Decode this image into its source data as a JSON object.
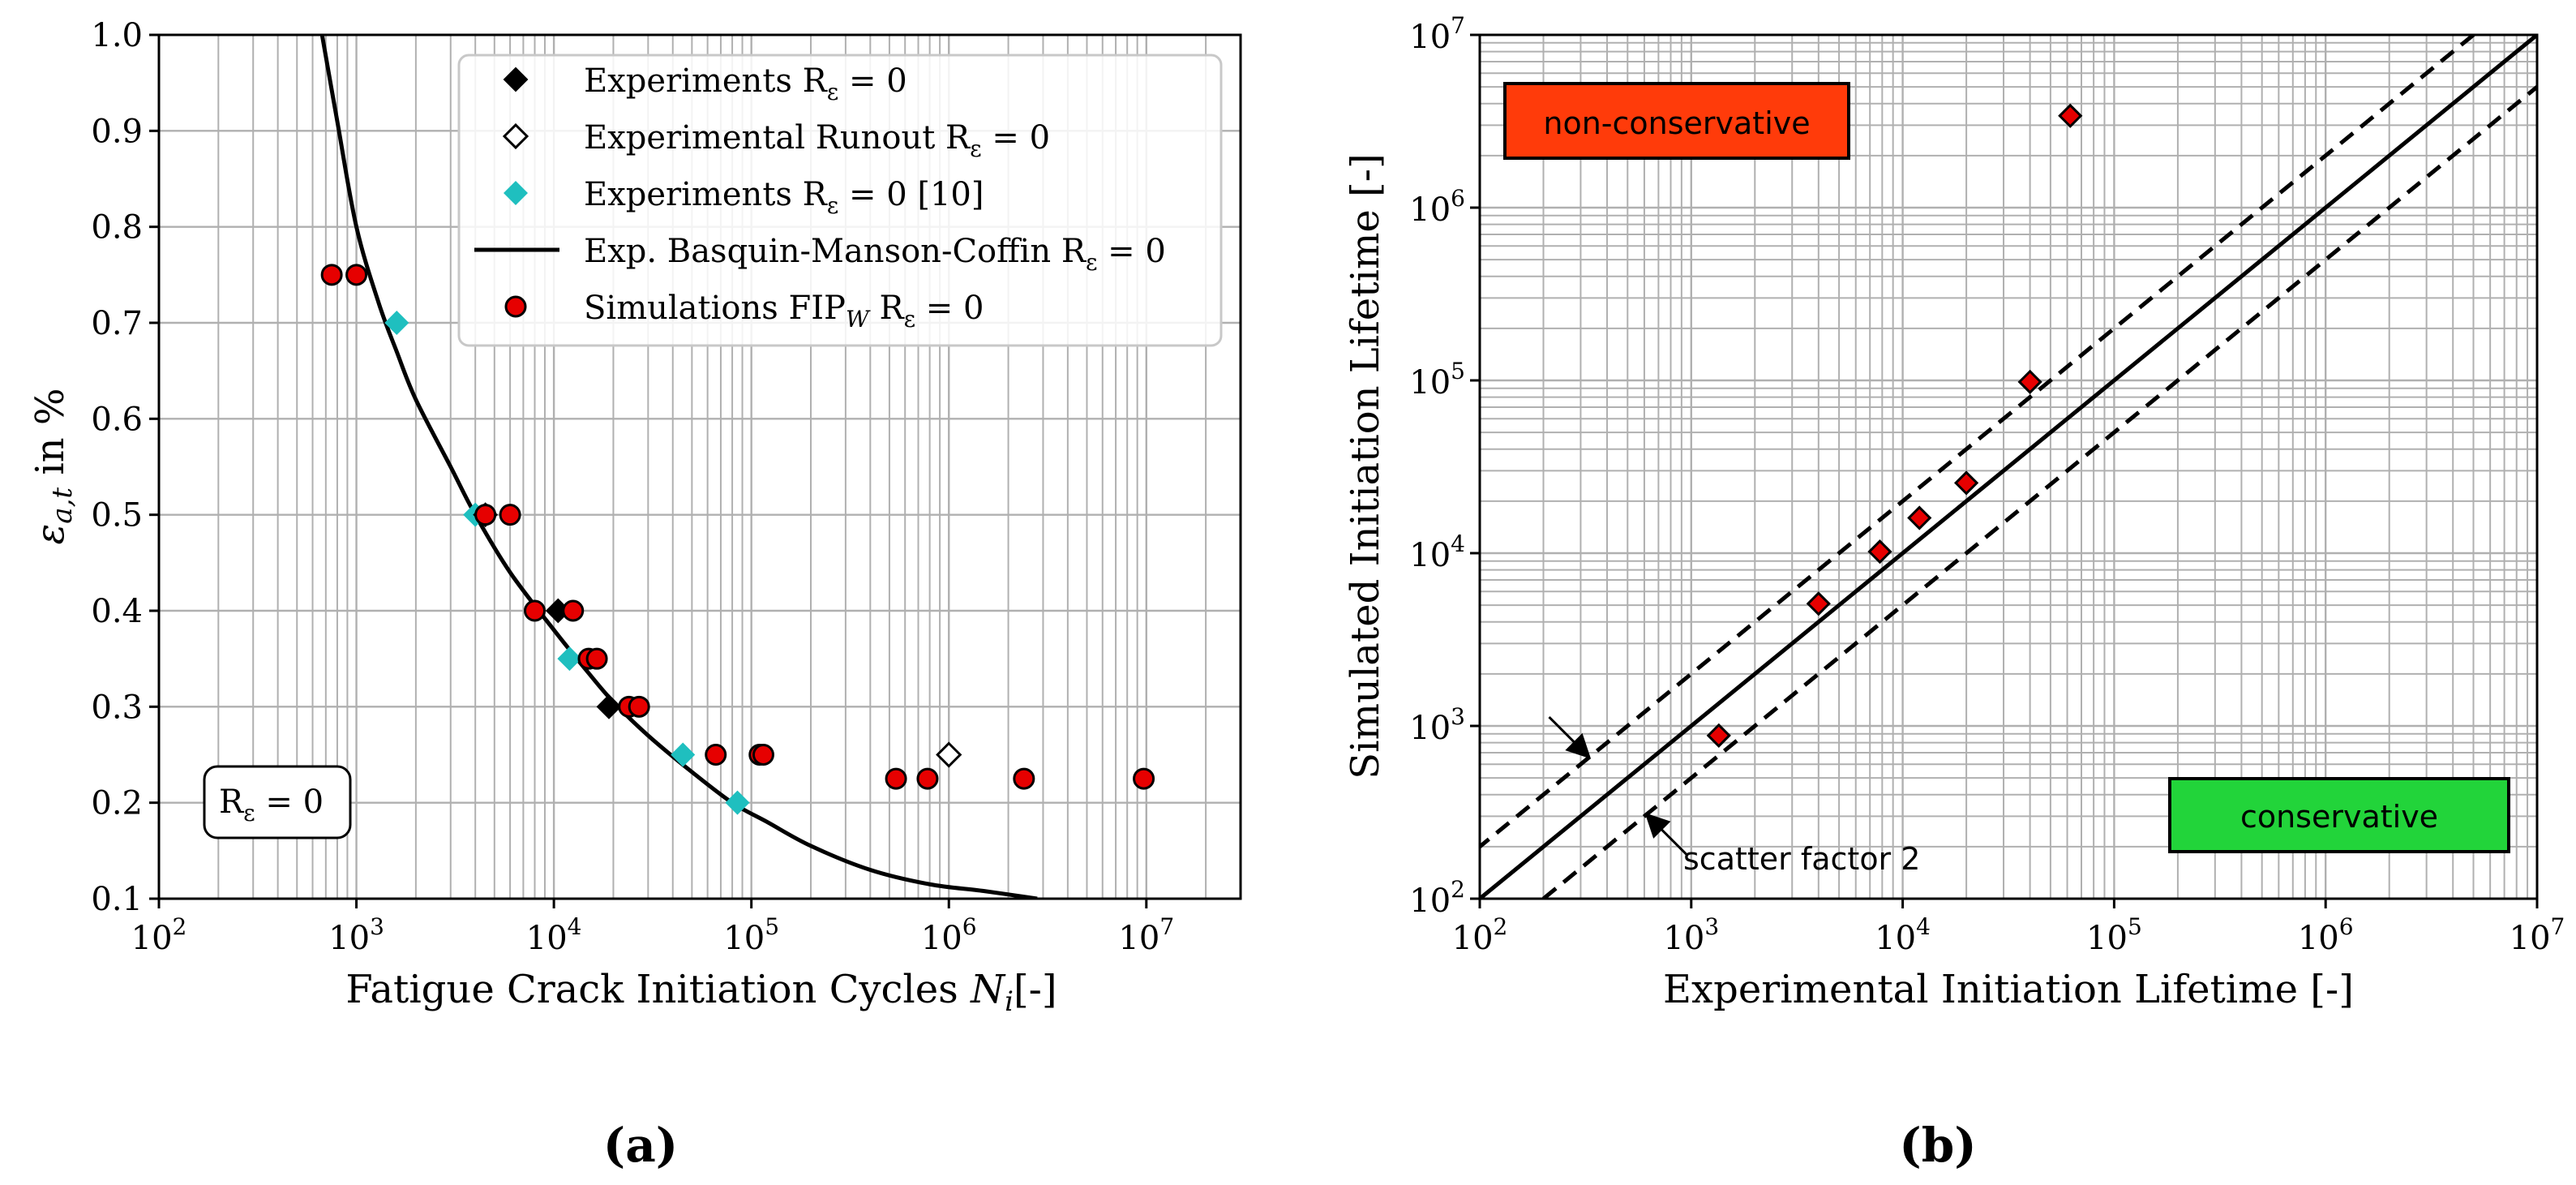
{
  "colors": {
    "axis": "#000000",
    "grid": "#b0b0b0",
    "experiment": "#000000",
    "experiment_lit": "#1fbfbf",
    "simulation": "#e60000",
    "fit_line": "#000000",
    "nonconservative_box": "#ff3b0a",
    "conservative_box": "#22d43a"
  },
  "panel_labels": {
    "a": "(a)",
    "b": "(b)"
  },
  "chart_data": [
    {
      "id": "a",
      "type": "scatter",
      "xscale": "log",
      "yscale": "linear",
      "xlabel_prefix": "Fatigue Crack Initiation Cycles ",
      "xlabel_var": "N",
      "xlabel_sub": "i",
      "xlabel_suffix": "[-]",
      "ylabel_var": "ε",
      "ylabel_sub": "a,t",
      "ylabel_suffix": " in %",
      "xlim": [
        100,
        30000000
      ],
      "ylim": [
        0.1,
        1.0
      ],
      "yticks": [
        0.1,
        0.2,
        0.3,
        0.4,
        0.5,
        0.6,
        0.7,
        0.8,
        0.9,
        1.0
      ],
      "ytick_labels": [
        "0.1",
        "0.2",
        "0.3",
        "0.4",
        "0.5",
        "0.6",
        "0.7",
        "0.8",
        "0.9",
        "1.0"
      ],
      "xtick_exponents": [
        2,
        3,
        4,
        5,
        6,
        7
      ],
      "grid": true,
      "annotation": "R",
      "annotation_sub": "ε",
      "annotation_suffix": " = 0",
      "legend_position": "top-right",
      "legend": [
        {
          "label": "Experiments R",
          "sub": "ε",
          "suffix": " = 0",
          "marker": "diamond-filled"
        },
        {
          "label": "Experimental Runout R",
          "sub": "ε",
          "suffix": " = 0",
          "marker": "diamond-open"
        },
        {
          "label": "Experiments R",
          "sub": "ε",
          "suffix": " = 0 [10]",
          "marker": "diamond-cyan"
        },
        {
          "label": "Exp. Basquin-Manson-Coffin R",
          "sub": "ε",
          "suffix": " = 0",
          "marker": "line"
        },
        {
          "label": "Simulations FIP",
          "label_sub": "W",
          "label2": " R",
          "sub": "ε",
          "suffix": " = 0",
          "marker": "circle-red"
        }
      ],
      "series": [
        {
          "name": "Experiments",
          "marker": "diamond-filled",
          "points": [
            [
              4500,
              0.5
            ],
            [
              10500,
              0.4
            ],
            [
              19000,
              0.3
            ]
          ]
        },
        {
          "name": "Experimental Runout",
          "marker": "diamond-open",
          "points": [
            [
              1000000,
              0.25
            ]
          ]
        },
        {
          "name": "Experiments [10]",
          "marker": "diamond-cyan",
          "points": [
            [
              1600,
              0.7
            ],
            [
              4000,
              0.5
            ],
            [
              12000,
              0.35
            ],
            [
              45000,
              0.25
            ],
            [
              85000,
              0.2
            ]
          ]
        },
        {
          "name": "Simulations FIPW",
          "marker": "circle-red",
          "points": [
            [
              750,
              0.75
            ],
            [
              1000,
              0.75
            ],
            [
              4500,
              0.5
            ],
            [
              6000,
              0.5
            ],
            [
              8000,
              0.4
            ],
            [
              12500,
              0.4
            ],
            [
              15000,
              0.35
            ],
            [
              16500,
              0.35
            ],
            [
              24000,
              0.3
            ],
            [
              27000,
              0.3
            ],
            [
              66000,
              0.25
            ],
            [
              110000,
              0.25
            ],
            [
              115000,
              0.25
            ],
            [
              540000,
              0.225
            ],
            [
              780000,
              0.225
            ],
            [
              2400000,
              0.225
            ],
            [
              9700000,
              0.225
            ]
          ]
        },
        {
          "name": "Exp. Basquin-Manson-Coffin",
          "marker": "line",
          "points": [
            [
              670,
              1.0
            ],
            [
              800,
              0.91
            ],
            [
              1000,
              0.8
            ],
            [
              1300,
              0.72
            ],
            [
              1600,
              0.67
            ],
            [
              2000,
              0.62
            ],
            [
              3000,
              0.55
            ],
            [
              4000,
              0.5
            ],
            [
              6000,
              0.44
            ],
            [
              10000,
              0.38
            ],
            [
              15000,
              0.335
            ],
            [
              20000,
              0.305
            ],
            [
              30000,
              0.27
            ],
            [
              50000,
              0.232
            ],
            [
              80000,
              0.2
            ],
            [
              120000,
              0.18
            ],
            [
              200000,
              0.155
            ],
            [
              400000,
              0.13
            ],
            [
              800000,
              0.115
            ],
            [
              1500000,
              0.108
            ],
            [
              2800000,
              0.1
            ]
          ]
        }
      ]
    },
    {
      "id": "b",
      "type": "scatter",
      "xscale": "log",
      "yscale": "log",
      "xlabel": "Experimental Initiation Lifetime [-]",
      "ylabel": "Simulated Initiation Lifetime [-]",
      "xlim": [
        100,
        10000000
      ],
      "ylim": [
        100,
        10000000
      ],
      "xtick_exponents": [
        2,
        3,
        4,
        5,
        6,
        7
      ],
      "ytick_exponents": [
        2,
        3,
        4,
        5,
        6,
        7
      ],
      "grid": true,
      "nonconservative_label": "non-conservative",
      "conservative_label": "conservative",
      "scatter_label": "scatter factor 2",
      "scatter_factor": 2,
      "series": [
        {
          "name": "Simulations",
          "marker": "diamond-red",
          "points": [
            [
              1350,
              880
            ],
            [
              4000,
              5100
            ],
            [
              7800,
              10200
            ],
            [
              12000,
              16000
            ],
            [
              20000,
              25500
            ],
            [
              40000,
              98000
            ],
            [
              62000,
              3400000
            ]
          ]
        }
      ]
    }
  ]
}
